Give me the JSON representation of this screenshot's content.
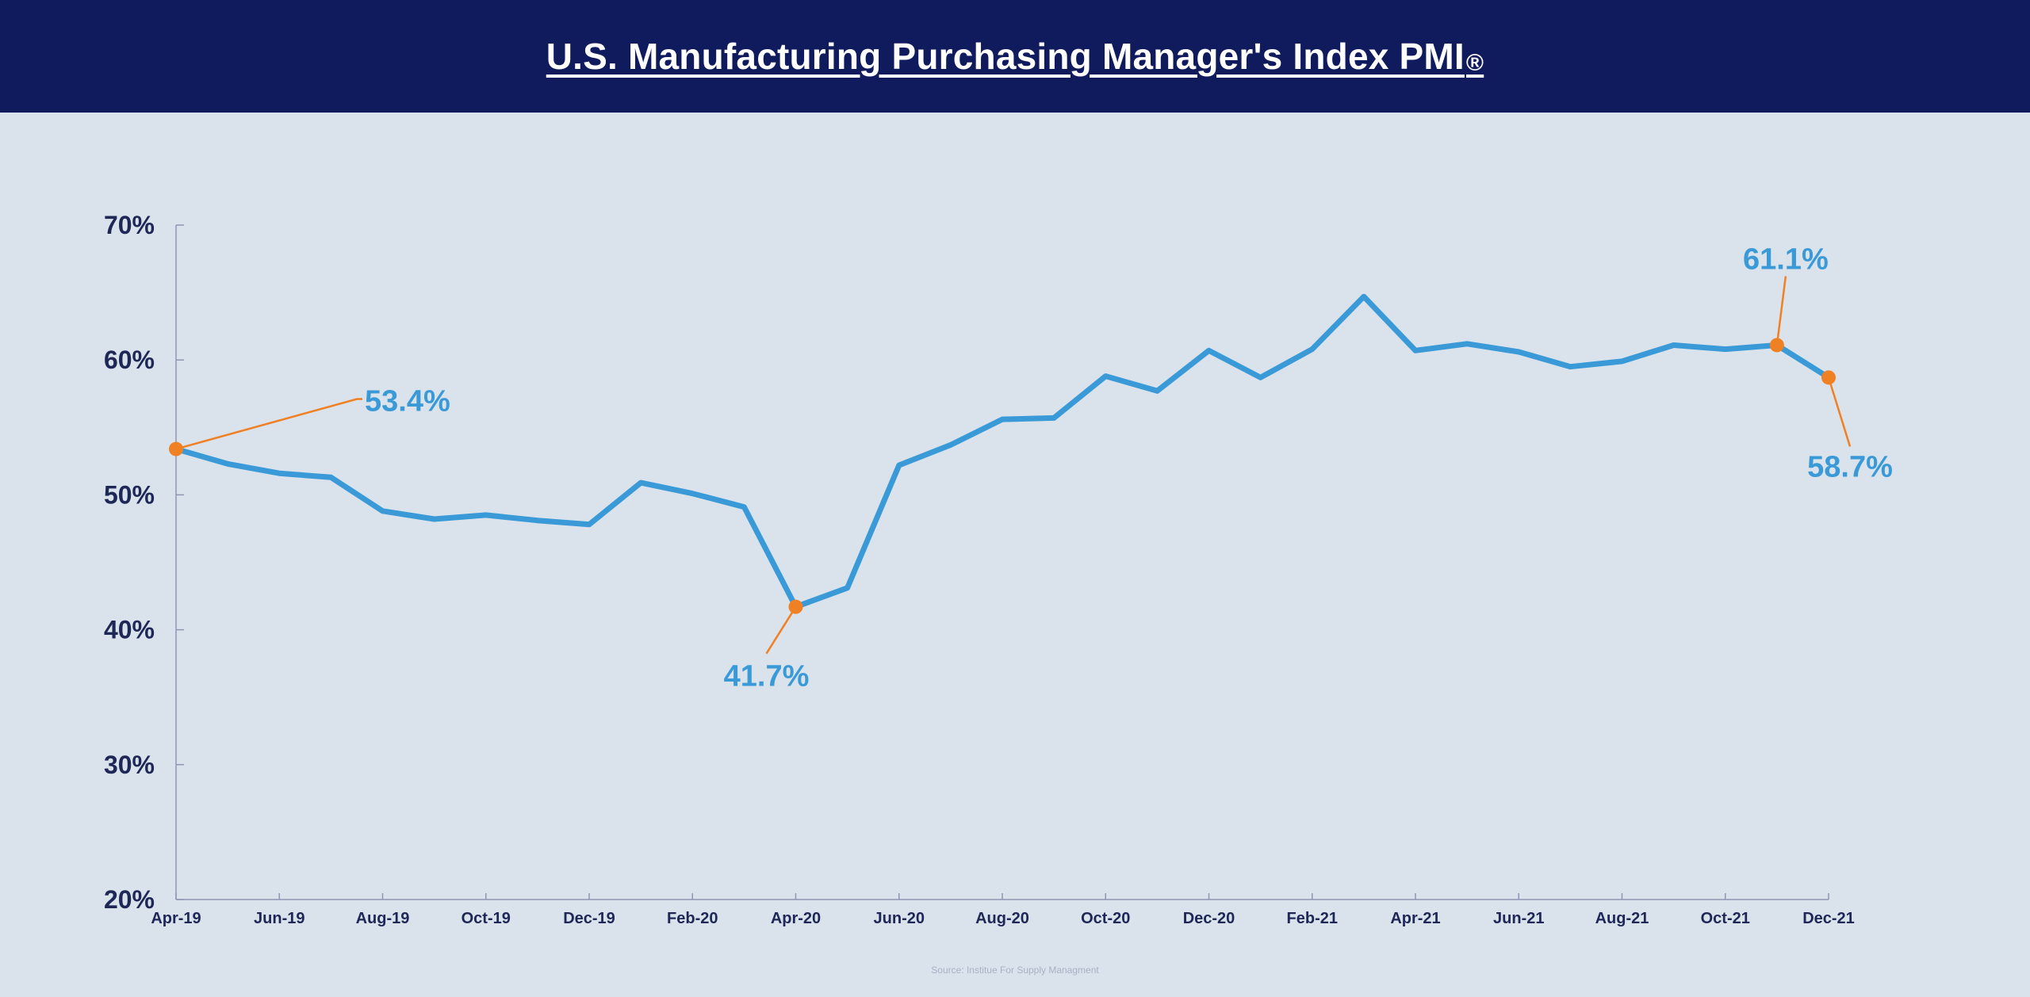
{
  "header": {
    "title": "U.S. Manufacturing Purchasing Manager's Index PMI",
    "title_mark": "®"
  },
  "source": "Source: Institue For Supply Managment",
  "colors": {
    "header_bg": "#101b5e",
    "background": "#dae3ec",
    "line": "#3a9ad8",
    "marker": "#f08024",
    "axis_text": "#1e2756",
    "axis_line": "#8e97b4",
    "callout_text": "#3a9ad8"
  },
  "chart_data": {
    "type": "line",
    "title": "U.S. Manufacturing Purchasing Manager's Index PMI®",
    "xlabel": "",
    "ylabel": "",
    "ylim": [
      20,
      70
    ],
    "y_ticks": [
      "20%",
      "30%",
      "40%",
      "50%",
      "60%",
      "70%"
    ],
    "x_tick_labels": [
      "Apr-19",
      "Jun-19",
      "Aug-19",
      "Oct-19",
      "Dec-19",
      "Feb-20",
      "Apr-20",
      "Jun-20",
      "Aug-20",
      "Oct-20",
      "Dec-20",
      "Feb-21",
      "Apr-21",
      "Jun-21",
      "Aug-21",
      "Oct-21",
      "Dec-21"
    ],
    "x": [
      "Apr-19",
      "May-19",
      "Jun-19",
      "Jul-19",
      "Aug-19",
      "Sep-19",
      "Oct-19",
      "Nov-19",
      "Dec-19",
      "Jan-20",
      "Feb-20",
      "Mar-20",
      "Apr-20",
      "May-20",
      "Jun-20",
      "Jul-20",
      "Aug-20",
      "Sep-20",
      "Oct-20",
      "Nov-20",
      "Dec-20",
      "Jan-21",
      "Feb-21",
      "Mar-21",
      "Apr-21",
      "May-21",
      "Jun-21",
      "Jul-21",
      "Aug-21",
      "Sep-21",
      "Oct-21",
      "Nov-21",
      "Dec-21"
    ],
    "series": [
      {
        "values": [
          53.4,
          52.3,
          51.6,
          51.3,
          48.8,
          48.2,
          48.5,
          48.1,
          47.8,
          50.9,
          50.1,
          49.1,
          41.7,
          43.1,
          52.2,
          53.7,
          55.6,
          55.7,
          58.8,
          57.7,
          60.7,
          58.7,
          60.8,
          64.7,
          60.7,
          61.2,
          60.6,
          59.5,
          59.9,
          61.1,
          60.8,
          61.1,
          58.7
        ]
      }
    ],
    "grid": false,
    "legend": "none",
    "annotations": [
      {
        "label": "53.4%",
        "x": "Apr-19",
        "y": 53.4
      },
      {
        "label": "41.7%",
        "x": "Apr-20",
        "y": 41.7
      },
      {
        "label": "61.1%",
        "x": "Nov-21",
        "y": 61.1
      },
      {
        "label": "58.7%",
        "x": "Dec-21",
        "y": 58.7
      }
    ]
  }
}
